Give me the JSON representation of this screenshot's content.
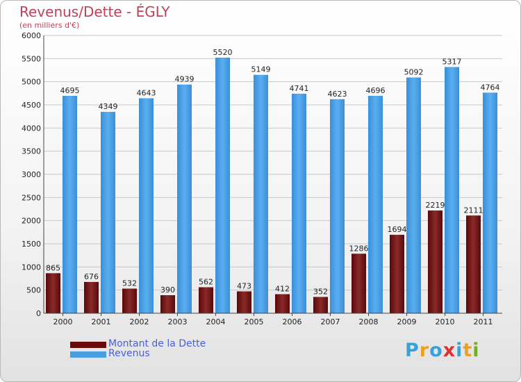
{
  "title": "Revenus/Dette - ÉGLY",
  "subtitle": "(en milliers d'€)",
  "chart_data": {
    "type": "bar",
    "categories": [
      "2000",
      "2001",
      "2002",
      "2003",
      "2004",
      "2005",
      "2006",
      "2007",
      "2008",
      "2009",
      "2010",
      "2011"
    ],
    "series": [
      {
        "name": "Montant de la Dette",
        "color": "#7a1a1a",
        "values": [
          865,
          676,
          532,
          390,
          562,
          473,
          412,
          352,
          1286,
          1694,
          2219,
          2111
        ]
      },
      {
        "name": "Revenus",
        "color": "#4a9ee0",
        "values": [
          4695,
          4349,
          4643,
          4939,
          5520,
          5149,
          4741,
          4623,
          4696,
          5092,
          5317,
          4764
        ]
      }
    ],
    "ylim": [
      0,
      6000
    ],
    "yticks": [
      "0",
      "500",
      "1000",
      "1500",
      "2000",
      "2500",
      "3000",
      "3500",
      "4000",
      "4500",
      "5000",
      "5500",
      "6000"
    ],
    "grid": true,
    "legend": "bottom-left"
  },
  "logo": {
    "letters": [
      "P",
      "r",
      "o",
      "x",
      "i",
      "t",
      "i"
    ],
    "colors": [
      "#3aa0d8",
      "#f0a020",
      "#3aa0d8",
      "#e03030",
      "#3aa0d8",
      "#f0a020",
      "#70b020"
    ]
  }
}
